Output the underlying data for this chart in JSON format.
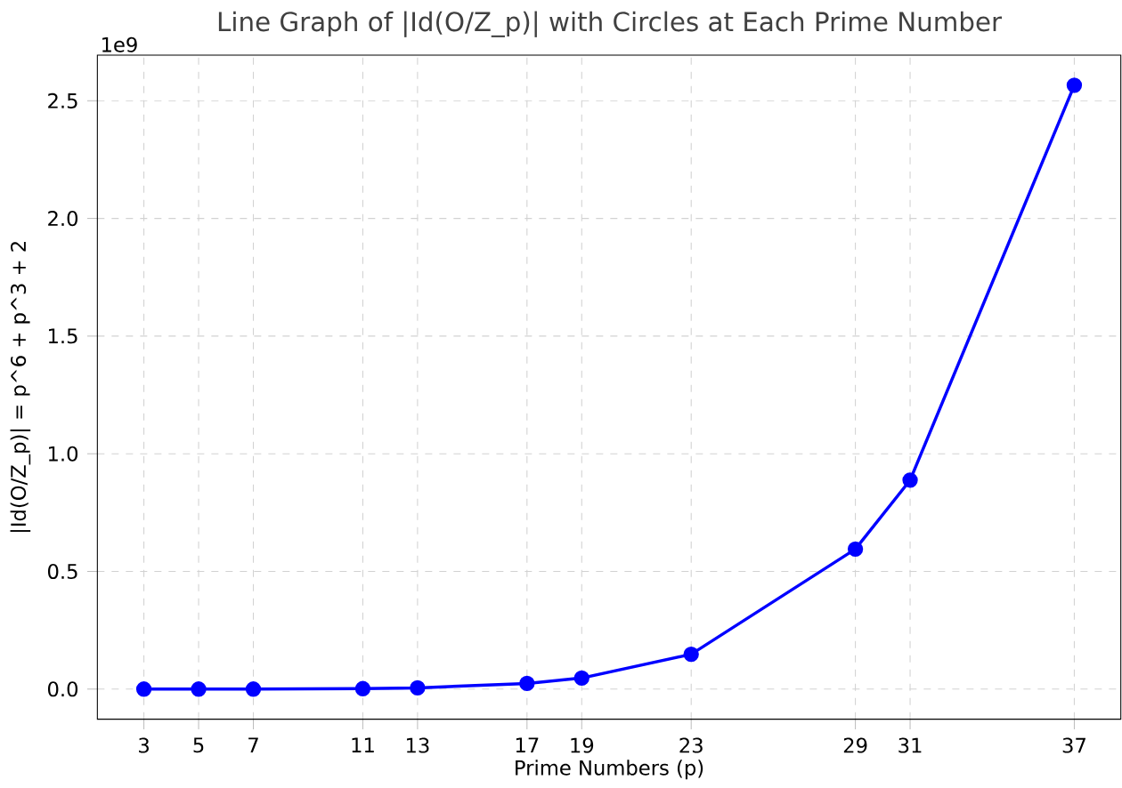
{
  "chart_data": {
    "type": "line",
    "title": "Line Graph of |Id(O/Z_p)| with Circles at Each Prime Number",
    "xlabel": "Prime Numbers (p)",
    "ylabel": "|Id(O/Z_p)| = p^6 + p^3 + 2",
    "annotations": [
      "1e9"
    ],
    "x": [
      3,
      5,
      7,
      11,
      13,
      17,
      19,
      23,
      29,
      31,
      37
    ],
    "series": [
      {
        "color": "#0000ff",
        "values": [
          0.0,
          0.0,
          0.0,
          0.002,
          0.005,
          0.024,
          0.047,
          0.148,
          0.595,
          0.888,
          2.566
        ]
      }
    ],
    "xlim": [
      1.3,
      38.7
    ],
    "ylim": [
      -0.128,
      2.694
    ],
    "xticks": [
      3,
      5,
      7,
      11,
      13,
      17,
      19,
      23,
      29,
      31,
      37
    ],
    "yticks": [
      {
        "value": 0,
        "label": "0.0"
      },
      {
        "value": 0.5,
        "label": "0.5"
      },
      {
        "value": 1,
        "label": "1.0"
      },
      {
        "value": 1.5,
        "label": "1.5"
      },
      {
        "value": 2,
        "label": "2.0"
      },
      {
        "value": 2.5,
        "label": "2.5"
      }
    ],
    "grid": true,
    "marker": "circle",
    "line_style": "solid"
  }
}
